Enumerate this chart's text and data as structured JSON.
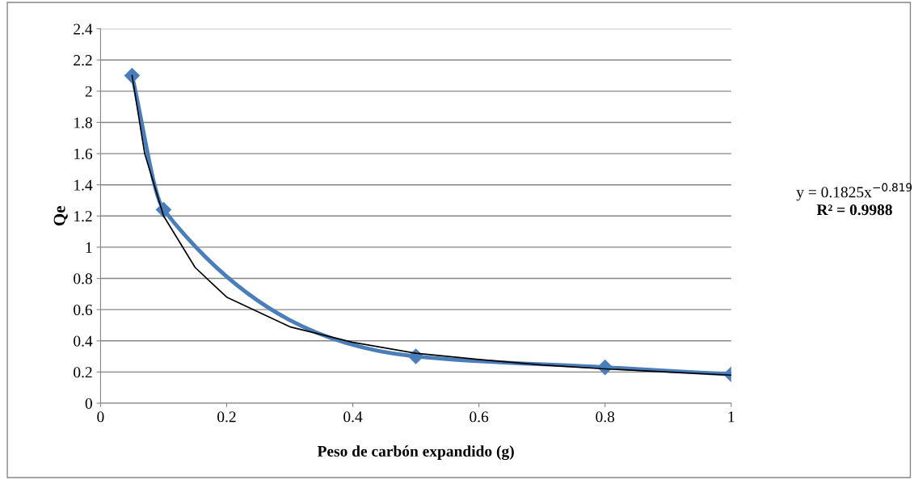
{
  "chart_data": {
    "type": "line",
    "xlabel": "Peso de carbón expandido (g)",
    "ylabel": "Qe",
    "xlim": [
      0,
      1
    ],
    "xticks": [
      0,
      0.2,
      0.4,
      0.6,
      0.8,
      1
    ],
    "ylim": [
      0,
      2.4
    ],
    "yticks": [
      0,
      0.2,
      0.4,
      0.6,
      0.8,
      1,
      1.2,
      1.4,
      1.6,
      1.8,
      2,
      2.2,
      2.4
    ],
    "grid": "y",
    "marker": "diamond",
    "line_style": "solid",
    "series": [
      {
        "color": "#4a7ebb",
        "x": [
          0.05,
          0.1,
          0.5,
          0.8,
          1
        ],
        "values": [
          2.1,
          1.24,
          0.3,
          0.23,
          0.185
        ]
      },
      {
        "type": "line",
        "color": "#000000",
        "marker": "none",
        "x": [
          0.05,
          0.07,
          0.1,
          0.15,
          0.2,
          0.3,
          0.4,
          0.5,
          0.6,
          0.7,
          0.8,
          0.9,
          1
        ],
        "values": [
          2.1,
          1.6,
          1.2,
          0.87,
          0.68,
          0.49,
          0.39,
          0.32,
          0.28,
          0.245,
          0.22,
          0.2,
          0.18
        ]
      }
    ],
    "annotations": [
      "y = 0.1825x$^{−0.819}$",
      "R² = 0.9988"
    ]
  }
}
